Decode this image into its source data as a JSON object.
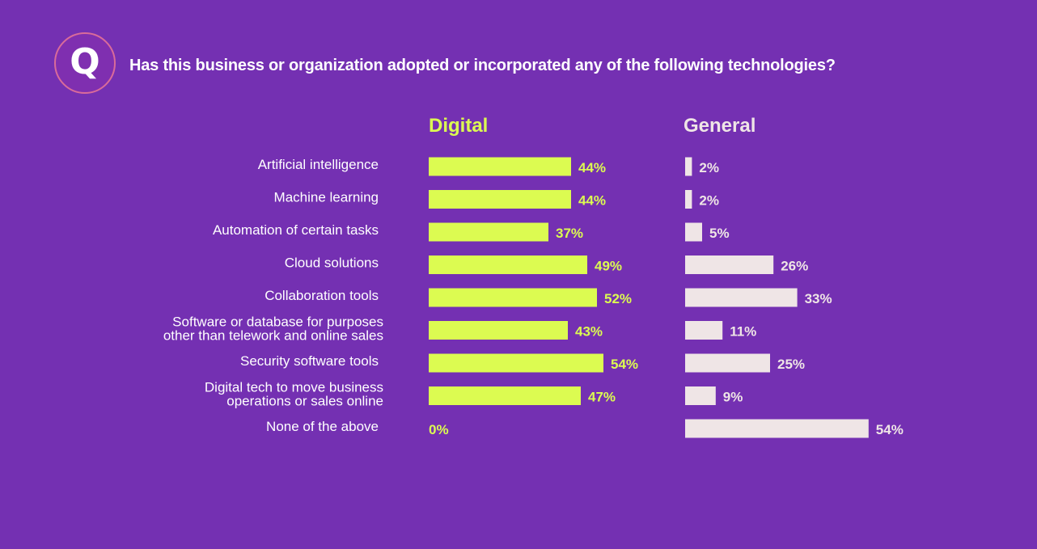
{
  "header": {
    "badge": "Q",
    "question": "Has this business or organization adopted or incorporated any of the following technologies?"
  },
  "colors": {
    "background": "#7430b2",
    "digital": "#dcfb51",
    "general": "#efe5e6",
    "text": "#ffffff"
  },
  "chart_data": {
    "type": "bar",
    "orientation": "horizontal",
    "categories": [
      [
        "Artificial intelligence"
      ],
      [
        "Machine learning"
      ],
      [
        "Automation of certain tasks"
      ],
      [
        "Cloud solutions"
      ],
      [
        "Collaboration tools"
      ],
      [
        "Software or database for purposes",
        "other than telework and online sales"
      ],
      [
        "Security software tools"
      ],
      [
        "Digital tech to move business",
        "operations or sales online"
      ],
      [
        "None of the above"
      ]
    ],
    "series": [
      {
        "name": "Digital",
        "values": [
          44,
          44,
          37,
          49,
          52,
          43,
          54,
          47,
          0
        ]
      },
      {
        "name": "General",
        "values": [
          2,
          2,
          5,
          26,
          33,
          11,
          25,
          9,
          54
        ]
      }
    ],
    "value_suffix": "%",
    "xlim": [
      0,
      100
    ],
    "grid": false,
    "legend": "column headings above each panel"
  }
}
